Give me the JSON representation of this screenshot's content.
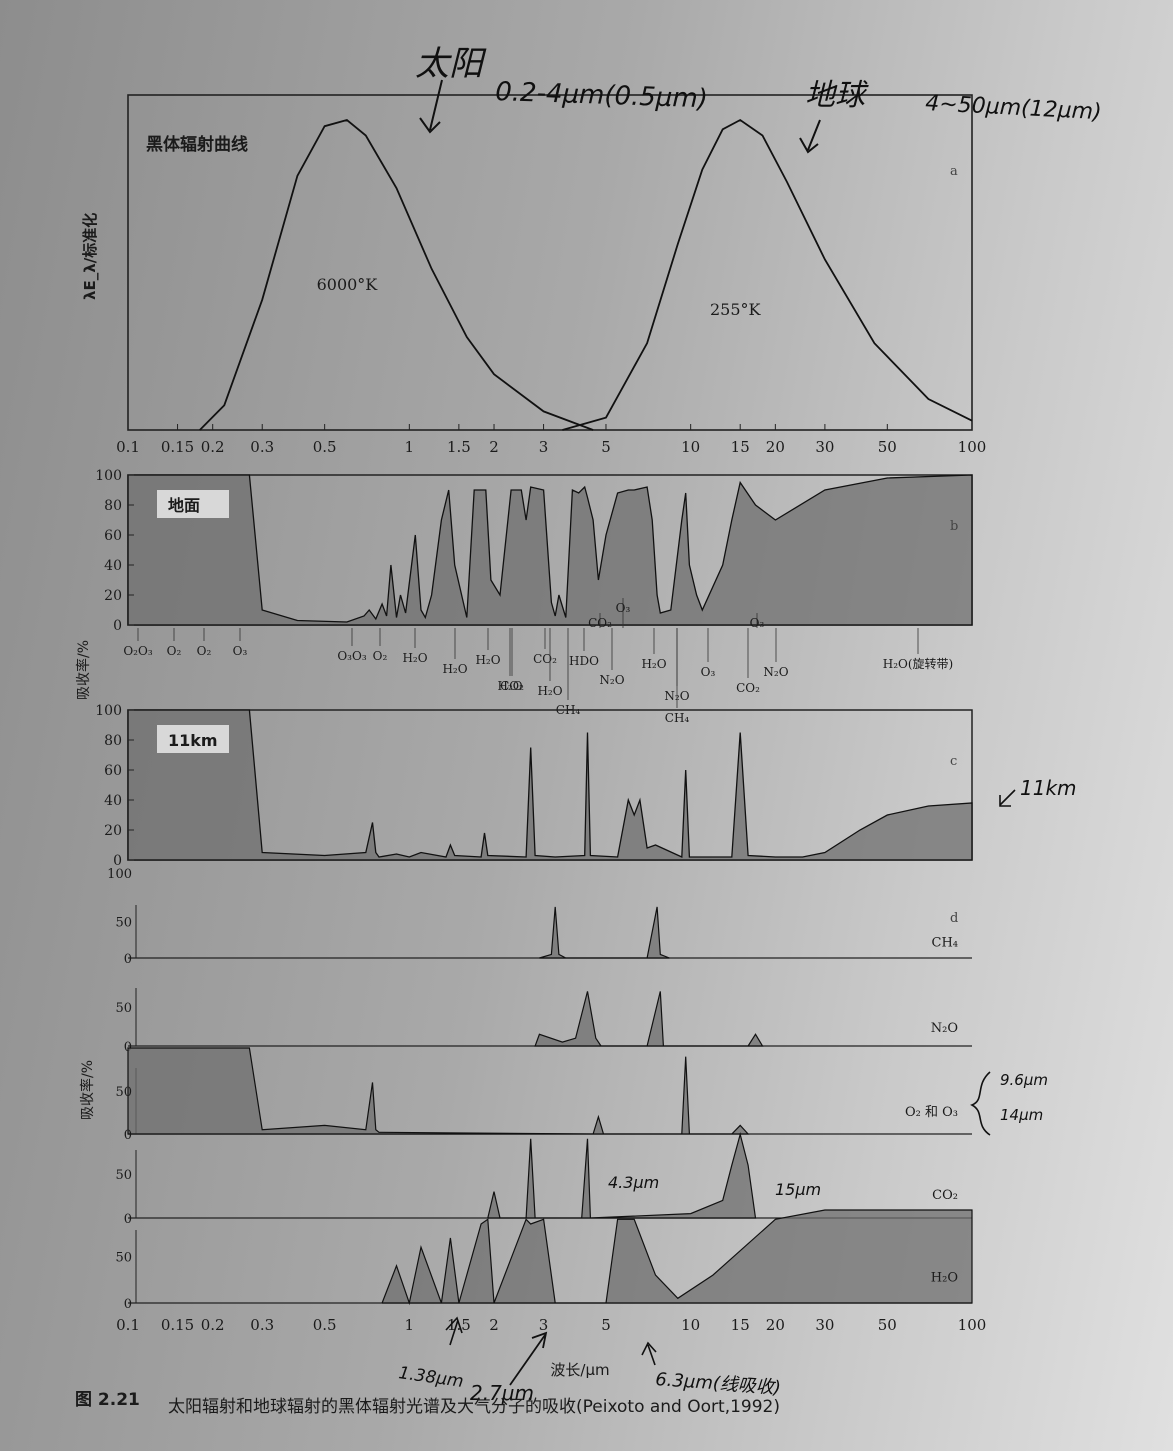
{
  "annotations": {
    "sun_label": "太阳",
    "sun_range": "0.2-4μm(0.5μm)",
    "earth_label": "地球",
    "earth_range": "4~50μm(12μm)",
    "c_side_label": "11km",
    "o3_peaks": "9.6μm",
    "o3_peaks2": "14μm",
    "co2_43": "4.3μm",
    "co2_15": "15μm",
    "h2o_138": "1.38μm",
    "h2o_27": "2.7μm",
    "h2o_63": "6.3μm(线吸收)"
  },
  "caption": {
    "figure_no": "图 2.21",
    "text": "太阳辐射和地球辐射的黑体辐射光谱及大气分子的吸收(Peixoto and Oort,1992)"
  },
  "x_axis": {
    "ticks": [
      0.1,
      0.15,
      0.2,
      0.3,
      0.5,
      1,
      1.5,
      2,
      3,
      5,
      10,
      15,
      20,
      30,
      50,
      100
    ],
    "tick_labels": [
      "0.1",
      "0.15",
      "0.2",
      "0.3",
      "0.5",
      "1",
      "1.5",
      "2",
      "3",
      "5",
      "10",
      "15",
      "20",
      "30",
      "50",
      "100"
    ],
    "label": "波长/μm",
    "range": [
      0.1,
      100
    ],
    "scale": "log"
  },
  "chart_data": [
    {
      "panel": "a",
      "type": "line",
      "title": "黑体辐射曲线",
      "ylabel": "λE_λ/标准化",
      "ylim": [
        0,
        1
      ],
      "series": [
        {
          "name": "6000°K",
          "x": [
            0.18,
            0.22,
            0.3,
            0.4,
            0.5,
            0.6,
            0.7,
            0.9,
            1.2,
            1.6,
            2,
            3,
            4.5
          ],
          "y": [
            0.0,
            0.08,
            0.42,
            0.82,
            0.98,
            1.0,
            0.95,
            0.78,
            0.52,
            0.3,
            0.18,
            0.06,
            0.0
          ]
        },
        {
          "name": "255°K",
          "x": [
            3.5,
            5,
            7,
            9,
            11,
            13,
            15,
            18,
            22,
            30,
            45,
            70,
            100
          ],
          "y": [
            0.0,
            0.04,
            0.28,
            0.6,
            0.84,
            0.97,
            1.0,
            0.95,
            0.8,
            0.55,
            0.28,
            0.1,
            0.03
          ]
        }
      ]
    },
    {
      "panel": "b",
      "type": "area",
      "title": "地面",
      "ylabel": "吸收率/%",
      "ylim": [
        0,
        100
      ],
      "yticks": [
        0,
        20,
        40,
        60,
        80,
        100
      ],
      "x": [
        0.1,
        0.27,
        0.3,
        0.4,
        0.6,
        0.69,
        0.72,
        0.76,
        0.8,
        0.83,
        0.86,
        0.9,
        0.93,
        0.97,
        1.05,
        1.1,
        1.14,
        1.2,
        1.3,
        1.38,
        1.45,
        1.6,
        1.7,
        1.87,
        1.95,
        2.1,
        2.3,
        2.5,
        2.6,
        2.7,
        3,
        3.2,
        3.3,
        3.4,
        3.6,
        3.8,
        4,
        4.2,
        4.3,
        4.5,
        4.7,
        5,
        5.5,
        6,
        6.3,
        7,
        7.3,
        7.6,
        7.8,
        8.5,
        9.3,
        9.6,
        9.9,
        10.5,
        11,
        13,
        14,
        15,
        17,
        20,
        30,
        50,
        100
      ],
      "y": [
        100,
        100,
        10,
        3,
        2,
        6,
        10,
        4,
        14,
        6,
        40,
        5,
        20,
        8,
        60,
        10,
        5,
        20,
        70,
        90,
        40,
        5,
        90,
        90,
        30,
        20,
        90,
        90,
        70,
        92,
        90,
        15,
        6,
        20,
        5,
        90,
        88,
        92,
        85,
        70,
        30,
        60,
        88,
        90,
        90,
        92,
        70,
        20,
        8,
        10,
        70,
        88,
        40,
        20,
        10,
        40,
        70,
        95,
        80,
        70,
        90,
        98,
        100
      ],
      "labels_below": [
        "O₂O₃",
        "O₂",
        "O₂",
        "O₃",
        "O₃O₃",
        "O₂",
        "H₂O",
        "H₂O",
        "H₂O",
        "H₂O",
        "CO₂",
        "CO₂",
        "H₂O",
        "HDO",
        "CO₂",
        "O₃",
        "N₂O",
        "CH₄",
        "H₂O",
        "N₂O",
        "CH₄",
        "O₃",
        "O₃",
        "CO₂",
        "N₂O",
        "H₂O(旋转带)"
      ]
    },
    {
      "panel": "c",
      "type": "area",
      "title": "11km",
      "ylabel": "吸收率/%",
      "ylim": [
        0,
        100
      ],
      "yticks": [
        0,
        20,
        40,
        60,
        80,
        100
      ],
      "x": [
        0.1,
        0.27,
        0.3,
        0.5,
        0.7,
        0.74,
        0.76,
        0.78,
        0.9,
        1.0,
        1.1,
        1.35,
        1.4,
        1.45,
        1.8,
        1.85,
        1.9,
        2.6,
        2.7,
        2.8,
        3.3,
        4.2,
        4.3,
        4.4,
        5.5,
        6.0,
        6.3,
        6.6,
        7.0,
        7.5,
        9.3,
        9.6,
        9.9,
        14,
        15,
        16,
        20,
        25,
        30,
        40,
        50,
        70,
        100
      ],
      "y": [
        100,
        100,
        5,
        3,
        5,
        25,
        5,
        2,
        4,
        2,
        5,
        2,
        10,
        3,
        2,
        18,
        3,
        2,
        75,
        3,
        2,
        3,
        85,
        3,
        2,
        40,
        30,
        40,
        8,
        10,
        2,
        60,
        2,
        2,
        85,
        3,
        2,
        2,
        5,
        20,
        30,
        36,
        38
      ]
    },
    {
      "panel": "d",
      "type": "area",
      "ylabel": "吸收率/%",
      "ylim": [
        0,
        100
      ],
      "yticks": [
        0,
        50,
        100
      ],
      "series": [
        {
          "name": "CH₄",
          "x": [
            2.9,
            3.2,
            3.3,
            3.4,
            3.6,
            7.0,
            7.6,
            7.8,
            8.4
          ],
          "y": [
            0,
            5,
            70,
            5,
            0,
            0,
            70,
            5,
            0
          ]
        },
        {
          "name": "N₂O",
          "x": [
            2.8,
            2.9,
            3.5,
            3.9,
            4.3,
            4.6,
            4.8,
            7.0,
            7.8,
            8.0,
            16,
            17,
            18
          ],
          "y": [
            0,
            15,
            5,
            10,
            70,
            10,
            0,
            0,
            70,
            0,
            0,
            15,
            0
          ]
        },
        {
          "name": "O₂ 和 O₃",
          "x": [
            0.1,
            0.27,
            0.3,
            0.5,
            0.7,
            0.74,
            0.76,
            0.78,
            4.5,
            4.7,
            4.9,
            9.3,
            9.6,
            9.9,
            14,
            15,
            16
          ],
          "y": [
            100,
            100,
            5,
            10,
            5,
            60,
            5,
            2,
            0,
            20,
            0,
            0,
            90,
            0,
            0,
            10,
            0
          ]
        },
        {
          "name": "CO₂",
          "x": [
            1.9,
            2.0,
            2.1,
            2.6,
            2.7,
            2.8,
            4.1,
            4.3,
            4.4,
            10,
            13,
            14,
            15,
            16,
            17
          ],
          "y": [
            0,
            30,
            0,
            0,
            90,
            0,
            0,
            90,
            0,
            5,
            20,
            60,
            95,
            60,
            0
          ]
        },
        {
          "name": "H₂O",
          "x": [
            0.8,
            0.9,
            1.0,
            1.1,
            1.3,
            1.4,
            1.5,
            1.8,
            1.9,
            2.0,
            2.6,
            2.7,
            3.0,
            3.3,
            5.0,
            5.5,
            6.3,
            7.5,
            9,
            12,
            20,
            30,
            100
          ],
          "y": [
            0,
            40,
            0,
            60,
            0,
            70,
            0,
            85,
            90,
            0,
            90,
            85,
            90,
            0,
            0,
            90,
            90,
            30,
            5,
            30,
            90,
            100,
            100
          ]
        }
      ]
    }
  ]
}
